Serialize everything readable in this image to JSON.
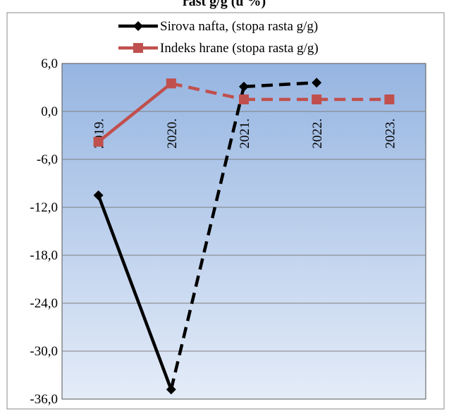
{
  "chart_data": {
    "type": "line",
    "title": "rast g/g (u %)",
    "categories": [
      "2019.",
      "2020.",
      "2021.",
      "2022.",
      "2023."
    ],
    "ylim": [
      -36,
      6
    ],
    "yticks": [
      "6,0",
      "0,0",
      "-6,0",
      "-12,0",
      "-18,0",
      "-24,0",
      "-30,0",
      "-36,0"
    ],
    "ytick_values": [
      6,
      0,
      -6,
      -12,
      -18,
      -24,
      -30,
      -36
    ],
    "grid": "horizontal",
    "legend_position": "top",
    "series": [
      {
        "name": "Sirova nafta, (stopa rasta g/g)",
        "color": "#000000",
        "marker": "diamond",
        "values": [
          -10.5,
          -34.8,
          3.1,
          3.6,
          null
        ],
        "solid_until_index": 1
      },
      {
        "name": "Indeks hrane (stopa rasta g/g)",
        "color": "#c0504d",
        "marker": "square",
        "values": [
          -3.8,
          3.5,
          1.5,
          1.5,
          1.5
        ],
        "solid_until_index": 1
      }
    ]
  }
}
